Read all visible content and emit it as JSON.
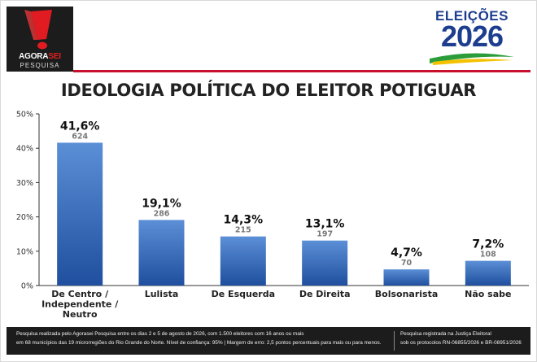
{
  "brand": {
    "agora": "AGORA",
    "sei": "SEI",
    "pesquisa": "PESQUISA"
  },
  "election_logo": {
    "top": "ELEIÇÕES",
    "year": "2026"
  },
  "title": "IDEOLOGIA POLÍTICA DO ELEITOR POTIGUAR",
  "chart_data": {
    "type": "bar",
    "title": "IDEOLOGIA POLÍTICA DO ELEITOR POTIGUAR",
    "categories": [
      [
        "De Centro /",
        "Independente /",
        "Neutro"
      ],
      [
        "Lulista"
      ],
      [
        "De Esquerda"
      ],
      [
        "De Direita"
      ],
      [
        "Bolsonarista"
      ],
      [
        "Não sabe"
      ]
    ],
    "values": [
      41.6,
      19.1,
      14.3,
      13.1,
      4.7,
      7.2
    ],
    "value_labels": [
      "41,6%",
      "19,1%",
      "14,3%",
      "13,1%",
      "4,7%",
      "7,2%"
    ],
    "counts": [
      "624",
      "286",
      "215",
      "197",
      "70",
      "108"
    ],
    "yticks": [
      0,
      10,
      20,
      30,
      40,
      50
    ],
    "ytick_labels": [
      "0%",
      "10%",
      "20%",
      "30%",
      "40%",
      "50%"
    ],
    "ylim": [
      0,
      50
    ],
    "grid": false,
    "bar_color_top": "#5b8fd6",
    "bar_color_bottom": "#1f4f9e"
  },
  "footer": {
    "left_line1": "Pesquisa realizada pelo Agorasei Pesquisa entre os dias 2 e 5 de agosto de 2026, com 1.500 eleitores com 16 anos ou mais",
    "left_line2": "em 68 municípios das 19 microrregiões do Rio Grande do Norte. Nível de confiança: 95% | Margem de erro: 2,5 pontos percentuais para mais ou para menos.",
    "right_line1": "Pesquisa registrada na Justiça Eleitoral",
    "right_line2": "sob os protocolos RN-06855/2026 e BR-08951/2026"
  },
  "colors": {
    "accent_red": "#c8102e",
    "brand_dark": "#1c1c1c",
    "election_blue": "#1d3e8f"
  }
}
